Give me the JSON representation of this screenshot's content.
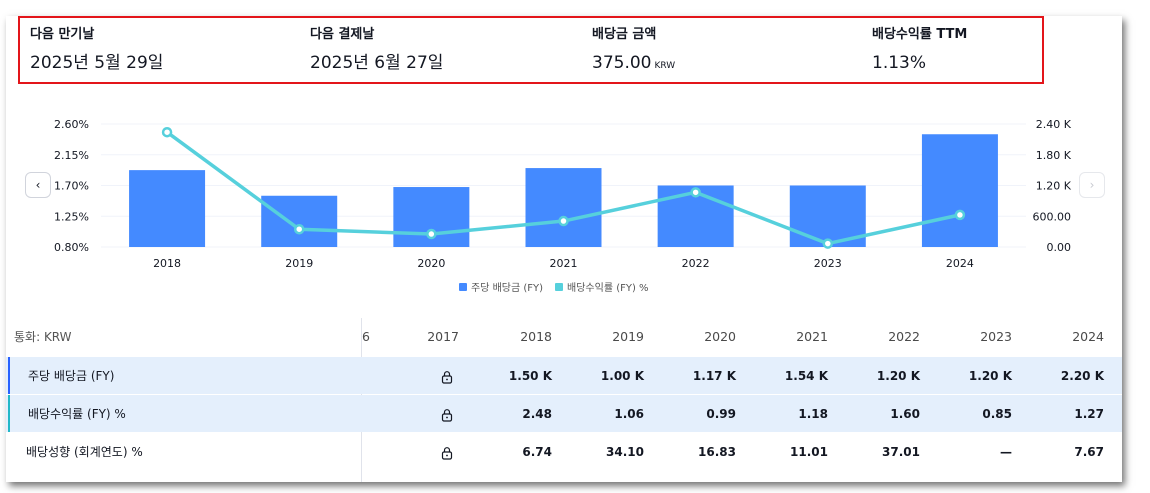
{
  "summary": [
    {
      "label": "다음 만기날",
      "value": "2025년 5월 29일",
      "unit": ""
    },
    {
      "label": "다음 결제날",
      "value": "2025년 6월 27일",
      "unit": ""
    },
    {
      "label": "배당금 금액",
      "value": "375.00",
      "unit": "KRW"
    },
    {
      "label": "배당수익률 TTM",
      "value": "1.13%",
      "unit": ""
    }
  ],
  "nav": {
    "prev_icon": "‹",
    "next_icon": "›"
  },
  "chart_data": {
    "type": "bar",
    "categories": [
      "2018",
      "2019",
      "2020",
      "2021",
      "2022",
      "2023",
      "2024"
    ],
    "series": [
      {
        "name": "주당 배당금 (FY)",
        "values": [
          1500,
          1000,
          1170,
          1540,
          1200,
          1200,
          2200
        ],
        "color": "#448aff",
        "axis": "right",
        "kind": "bar"
      },
      {
        "name": "배당수익률 (FY) %",
        "values": [
          2.48,
          1.06,
          0.99,
          1.18,
          1.6,
          0.85,
          1.27
        ],
        "color": "#56d0dc",
        "axis": "left",
        "kind": "line"
      }
    ],
    "left_axis": {
      "ticks": [
        "2.60%",
        "2.15%",
        "1.70%",
        "1.25%",
        "0.80%"
      ],
      "ylim": [
        0.8,
        2.6
      ]
    },
    "right_axis": {
      "ticks": [
        "2.40 K",
        "1.80 K",
        "1.20 K",
        "600.00",
        "0.00"
      ],
      "ylim": [
        0,
        2400
      ]
    },
    "legend_position": "bottom-center",
    "grid": true
  },
  "legend": {
    "bar_label": "주당 배당금 (FY)",
    "line_label": "배당수익률 (FY) %",
    "bar_color": "#448aff",
    "line_color": "#56d0dc"
  },
  "table": {
    "currency_label": "통화: KRW",
    "partial_year": "6",
    "years": [
      "2017",
      "2018",
      "2019",
      "2020",
      "2021",
      "2022",
      "2023",
      "2024"
    ],
    "rows": [
      {
        "label": "주당 배당금 (FY)",
        "cells": [
          "lock",
          "1.50 K",
          "1.00 K",
          "1.17 K",
          "1.54 K",
          "1.20 K",
          "1.20 K",
          "2.20 K"
        ]
      },
      {
        "label": "배당수익률 (FY) %",
        "cells": [
          "lock",
          "2.48",
          "1.06",
          "0.99",
          "1.18",
          "1.60",
          "0.85",
          "1.27"
        ]
      },
      {
        "label": "배당성향 (회계연도) %",
        "cells": [
          "lock",
          "6.74",
          "34.10",
          "16.83",
          "11.01",
          "37.01",
          "—",
          "7.67"
        ]
      }
    ]
  }
}
